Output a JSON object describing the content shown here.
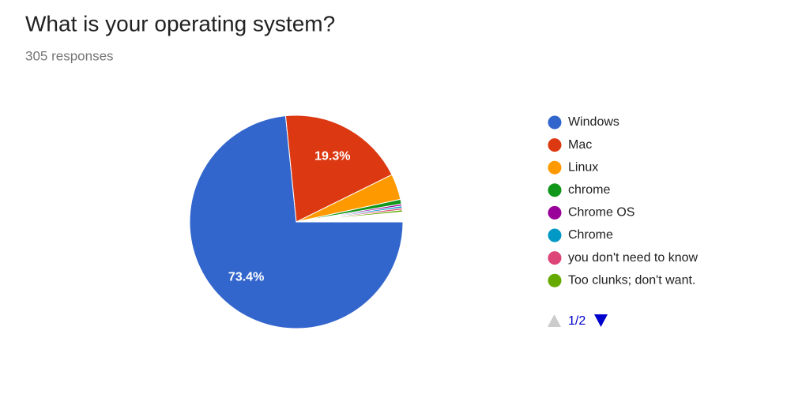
{
  "chart_data": {
    "type": "pie",
    "title": "What is your operating system?",
    "subtitle": "305 responses",
    "categories": [
      "Windows",
      "Mac",
      "Linux",
      "chrome",
      "Chrome OS",
      "Chrome",
      "you don't need to know",
      "Too clunks; don't want."
    ],
    "values": [
      73.4,
      19.3,
      3.9,
      0.7,
      0.3,
      0.3,
      0.3,
      0.3
    ],
    "value_labels": [
      "73.4%",
      "19.3%",
      null,
      null,
      null,
      null,
      null,
      null
    ],
    "colors": [
      "#3366cc",
      "#dc3912",
      "#ff9900",
      "#109618",
      "#990099",
      "#0099c6",
      "#dd4477",
      "#66aa00"
    ],
    "legend_page": "1/2"
  }
}
